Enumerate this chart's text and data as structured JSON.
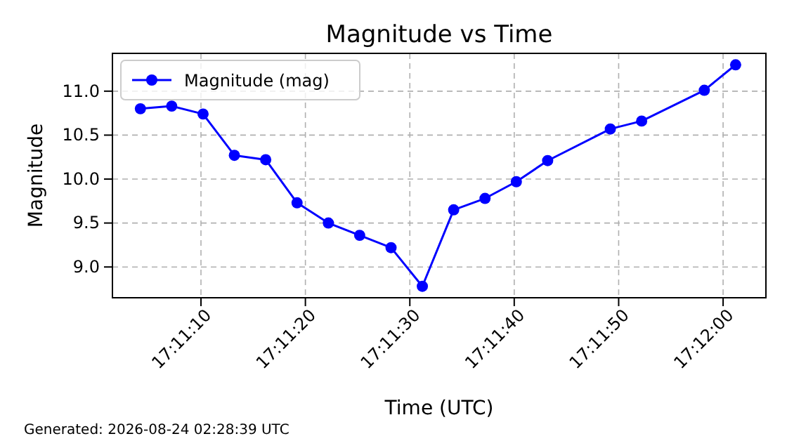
{
  "chart_data": {
    "type": "line",
    "title": "Magnitude vs Time",
    "xlabel": "Time (UTC)",
    "ylabel": "Magnitude",
    "x": [
      17.1845,
      17.185333,
      17.186167,
      17.187,
      17.187833,
      17.188667,
      17.1895,
      17.190333,
      17.191167,
      17.192,
      17.192833,
      17.193667,
      17.1945,
      17.195333,
      17.197,
      17.197833,
      17.1995,
      17.200333
    ],
    "series": [
      {
        "name": "Magnitude (mag)",
        "color": "#0000ff",
        "values": [
          10.8,
          10.83,
          10.74,
          10.27,
          10.22,
          9.73,
          9.5,
          9.36,
          9.22,
          8.78,
          9.65,
          9.78,
          9.97,
          10.21,
          10.57,
          10.66,
          11.01,
          11.3
        ]
      }
    ],
    "xlim": [
      17.183756,
      17.201139
    ],
    "xticks": [
      {
        "value": 17.186111,
        "label": "17:11:10"
      },
      {
        "value": 17.188889,
        "label": "17:11:20"
      },
      {
        "value": 17.191667,
        "label": "17:11:30"
      },
      {
        "value": 17.194444,
        "label": "17:11:40"
      },
      {
        "value": 17.197222,
        "label": "17:11:50"
      },
      {
        "value": 17.2,
        "label": "17:12:00"
      }
    ],
    "ylim": [
      8.65,
      11.43
    ],
    "yticks": [
      {
        "value": 9,
        "label": "9.0"
      },
      {
        "value": 9.5,
        "label": "9.5"
      },
      {
        "value": 10,
        "label": "10.0"
      },
      {
        "value": 10.5,
        "label": "10.5"
      },
      {
        "value": 11,
        "label": "11.0"
      }
    ],
    "grid": true,
    "legend": "top left",
    "marker": "circle",
    "line_style": "solid",
    "annotations": [
      "Generated: 2026-08-24 02:28:39 UTC"
    ]
  }
}
